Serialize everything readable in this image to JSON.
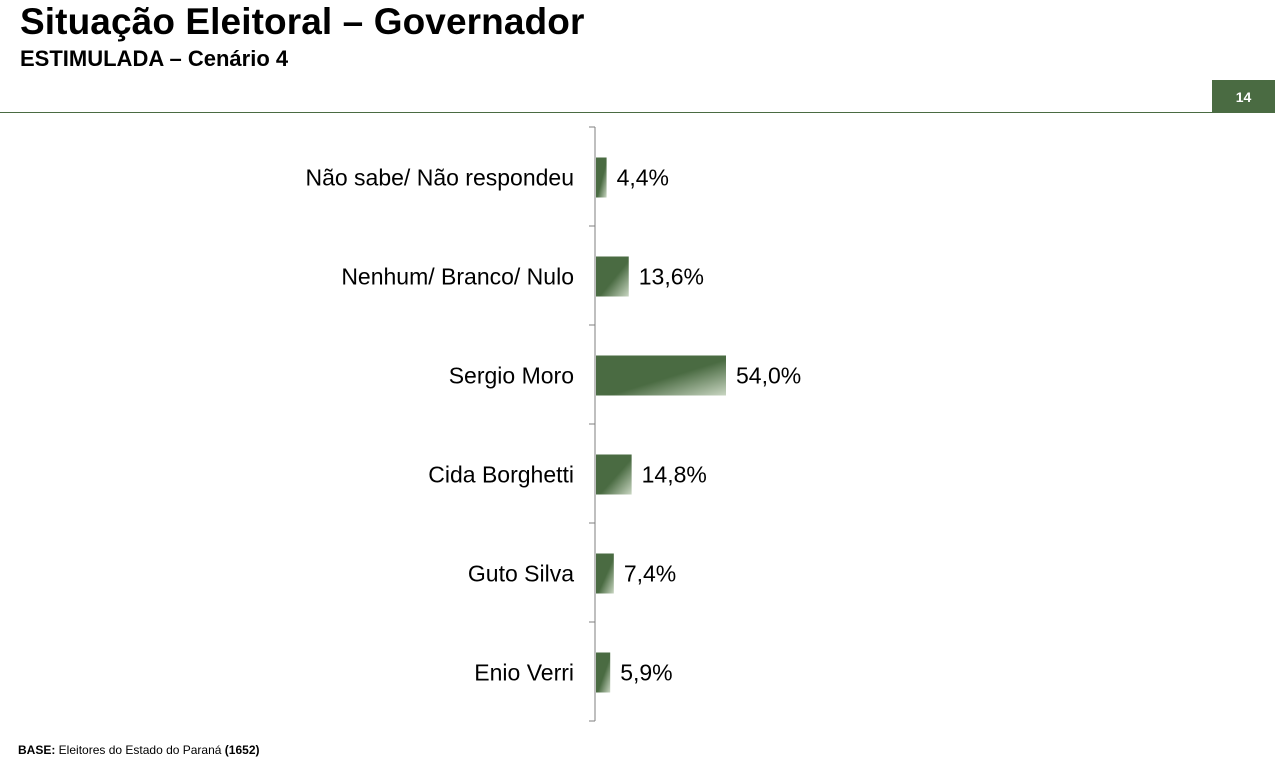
{
  "header": {
    "title": "Situação Eleitoral – Governador",
    "subtitle": "ESTIMULADA – Cenário 4",
    "page_number": "14"
  },
  "footer": {
    "base_label": "BASE:",
    "base_text": " Eleitores do Estado do Paraná ",
    "base_count": "(1652)"
  },
  "colors": {
    "bar_dark": "#4a6b42",
    "bar_light": "#c9d6c2",
    "accent": "#4a6b42"
  },
  "chart_data": {
    "type": "bar",
    "orientation": "horizontal",
    "categories": [
      "Não sabe/ Não respondeu",
      "Nenhum/ Branco/ Nulo",
      "Sergio Moro",
      "Cida Borghetti",
      "Guto Silva",
      "Enio Verri"
    ],
    "values": [
      4.4,
      13.6,
      54.0,
      14.8,
      7.4,
      5.9
    ],
    "value_labels": [
      "4,4%",
      "13,6%",
      "54,0%",
      "14,8%",
      "7,4%",
      "5,9%"
    ],
    "unit": "%",
    "xlim": [
      0,
      100
    ],
    "grid": false,
    "legend": "none"
  }
}
